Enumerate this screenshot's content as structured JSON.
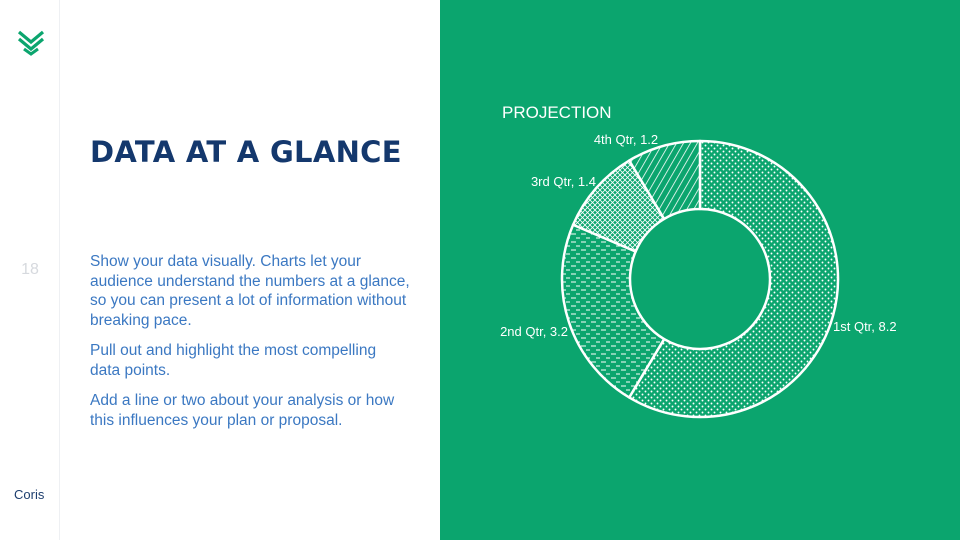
{
  "sidebar": {
    "logo_icon": "chevron-stack-logo",
    "slide_number": "18",
    "brand": "Coris"
  },
  "content": {
    "title": "DATA AT A GLANCE",
    "paragraphs": [
      "Show your data visually. Charts let your audience understand the numbers at a glance, so you can present a lot of information without breaking pace.",
      "Pull out and highlight the most compelling data points.",
      "Add a line or two about your analysis or how this influences your plan or proposal."
    ]
  },
  "colors": {
    "accent": "#0ba56e",
    "title": "#14386d",
    "body": "#3b78c2",
    "logo": "#0ba56e"
  },
  "chart_data": {
    "type": "pie",
    "variant": "donut",
    "title": "PROJECTION",
    "categories": [
      "1st Qtr",
      "2nd Qtr",
      "3rd Qtr",
      "4th Qtr"
    ],
    "values": [
      8.2,
      3.2,
      1.4,
      1.2
    ],
    "data_labels": [
      "1st Qtr, 8.2",
      "2nd Qtr, 3.2",
      "3rd Qtr, 1.4",
      "4th Qtr, 1.2"
    ],
    "patterns": [
      "dots",
      "dashes",
      "crosshatch",
      "diagonal-lines"
    ],
    "start_angle": "12 o'clock, clockwise",
    "legend": "none"
  }
}
